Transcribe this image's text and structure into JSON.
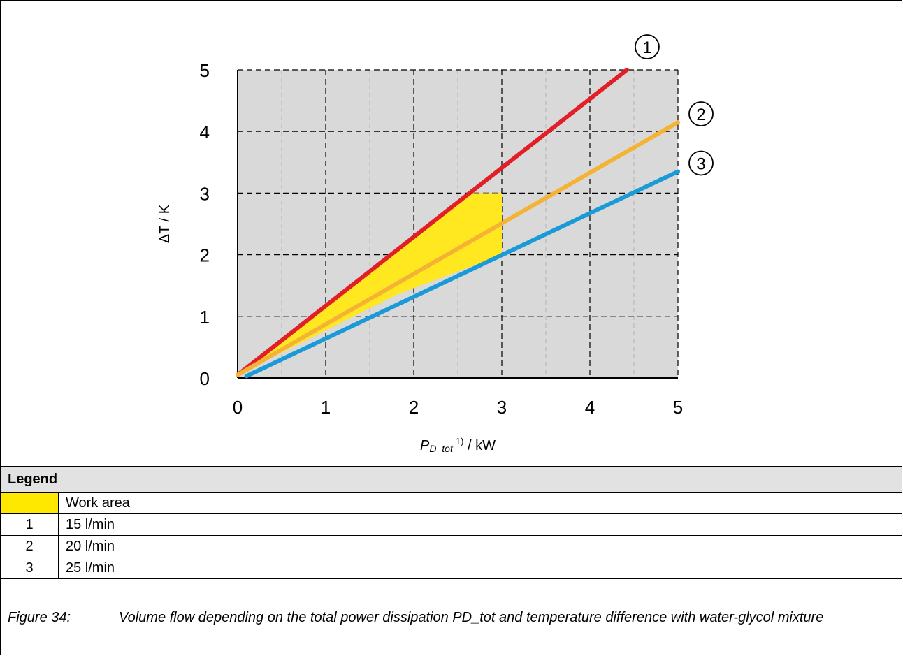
{
  "chart_data": {
    "type": "line",
    "title": "",
    "xlabel": {
      "var": "P",
      "sub": "D_tot",
      "sup": "1)",
      "unit": " / kW"
    },
    "ylabel": "ΔT / K",
    "xlim": [
      0,
      5
    ],
    "ylim": [
      0,
      5
    ],
    "xticks": [
      "0",
      "1",
      "2",
      "3",
      "4",
      "5"
    ],
    "yticks": [
      "0",
      "1",
      "2",
      "3",
      "4",
      "5"
    ],
    "minor_xgrid": [
      0.5,
      1.5,
      2.5,
      3.5,
      4.5
    ],
    "plot_background": "#d9d9d9",
    "grid": true,
    "series": [
      {
        "marker": "1",
        "color": "#e21e26",
        "x": [
          0.0,
          4.42
        ],
        "y": [
          0.05,
          5.0
        ]
      },
      {
        "marker": "2",
        "color": "#f5b335",
        "x": [
          0.0,
          5.0
        ],
        "y": [
          0.05,
          4.15
        ]
      },
      {
        "marker": "3",
        "color": "#1a9ad6",
        "x": [
          0.1,
          5.0
        ],
        "y": [
          0.03,
          3.35
        ]
      }
    ],
    "work_area": {
      "color": "#ffe81f",
      "polygon": [
        [
          0,
          0.05
        ],
        [
          1.8,
          1.35
        ],
        [
          3.0,
          2.0
        ],
        [
          3.0,
          3.0
        ],
        [
          2.6,
          3.0
        ]
      ]
    }
  },
  "legend": {
    "heading": "Legend",
    "rows": [
      {
        "key": "",
        "swatch": true,
        "text": "Work area"
      },
      {
        "key": "1",
        "swatch": false,
        "text": "15 l/min"
      },
      {
        "key": "2",
        "swatch": false,
        "text": "20 l/min"
      },
      {
        "key": "3",
        "swatch": false,
        "text": "25 l/min"
      }
    ]
  },
  "caption": {
    "number": "Figure 34:",
    "text": "Volume flow depending on the total power dissipation PD_tot and temperature difference with water-glycol mixture"
  }
}
